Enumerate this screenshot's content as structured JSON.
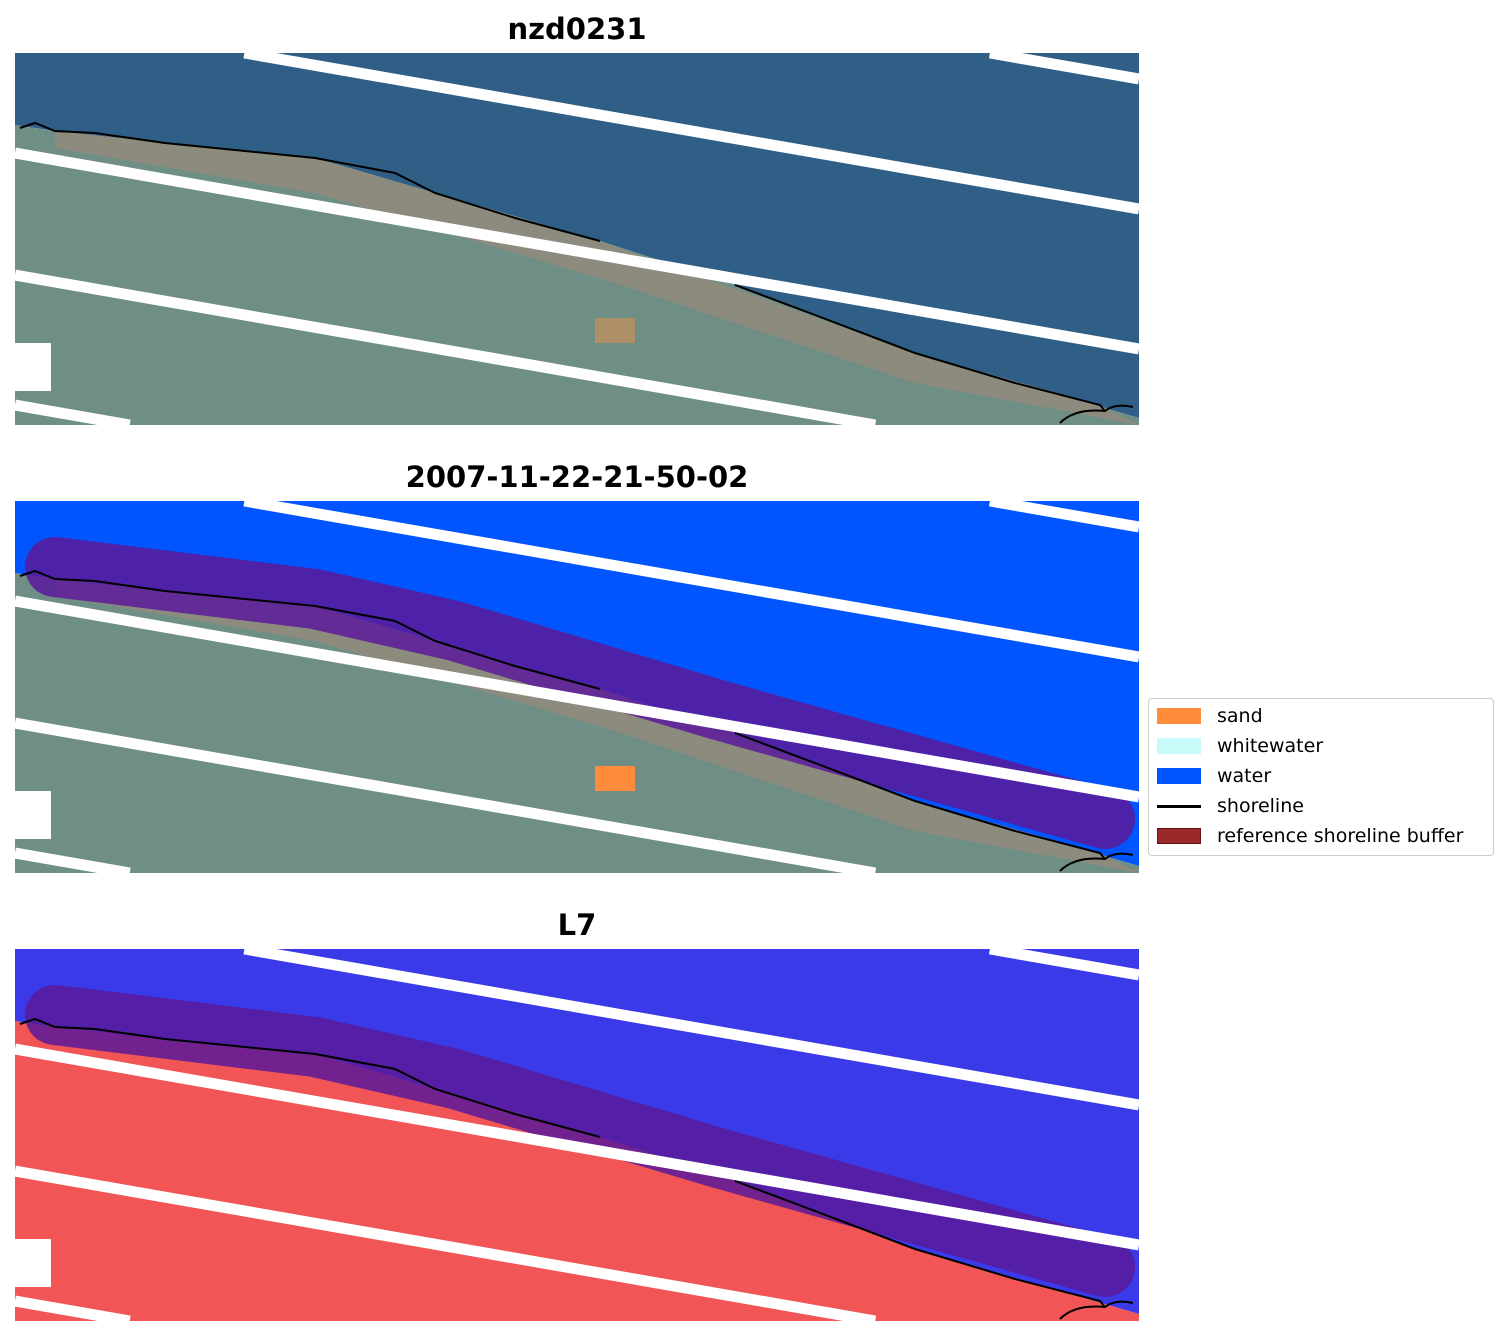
{
  "panels": [
    {
      "title": "nzd0231",
      "mode": "rgb"
    },
    {
      "title": "2007-11-22-21-50-02",
      "mode": "classified"
    },
    {
      "title": "L7",
      "mode": "index"
    }
  ],
  "legend": {
    "items": [
      {
        "label": "sand",
        "color": "#ff8c3a"
      },
      {
        "label": "whitewater",
        "color": "#c8fafa"
      },
      {
        "label": "water",
        "color": "#0055ff"
      },
      {
        "label": "shoreline",
        "color": "#000000"
      },
      {
        "label": "reference shoreline buffer",
        "color": "#9a2a2a"
      }
    ]
  }
}
